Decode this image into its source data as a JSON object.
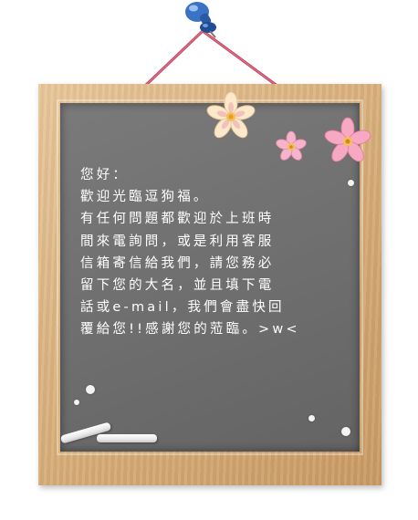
{
  "board": {
    "lines": [
      "您好：",
      "歡迎光臨逗狗福。",
      "有任何問題都歡迎於上班時",
      "間來電詢問，或是利用客服",
      "信箱寄信給我們，請您務必",
      "留下您的大名，並且填下電",
      "話或e-mail，我們會盡快回",
      "覆給您!!感謝您的蒞臨。>w<"
    ]
  },
  "colors": {
    "frame": "#d9b07c",
    "board": "#707070",
    "chalk_text": "#ffffff",
    "string": "#c2445e",
    "pin": "#2e5fa8"
  },
  "icons": {
    "pin": "push-pin-icon",
    "flower_large": "flower-icon",
    "chalk": "chalk-icon"
  }
}
